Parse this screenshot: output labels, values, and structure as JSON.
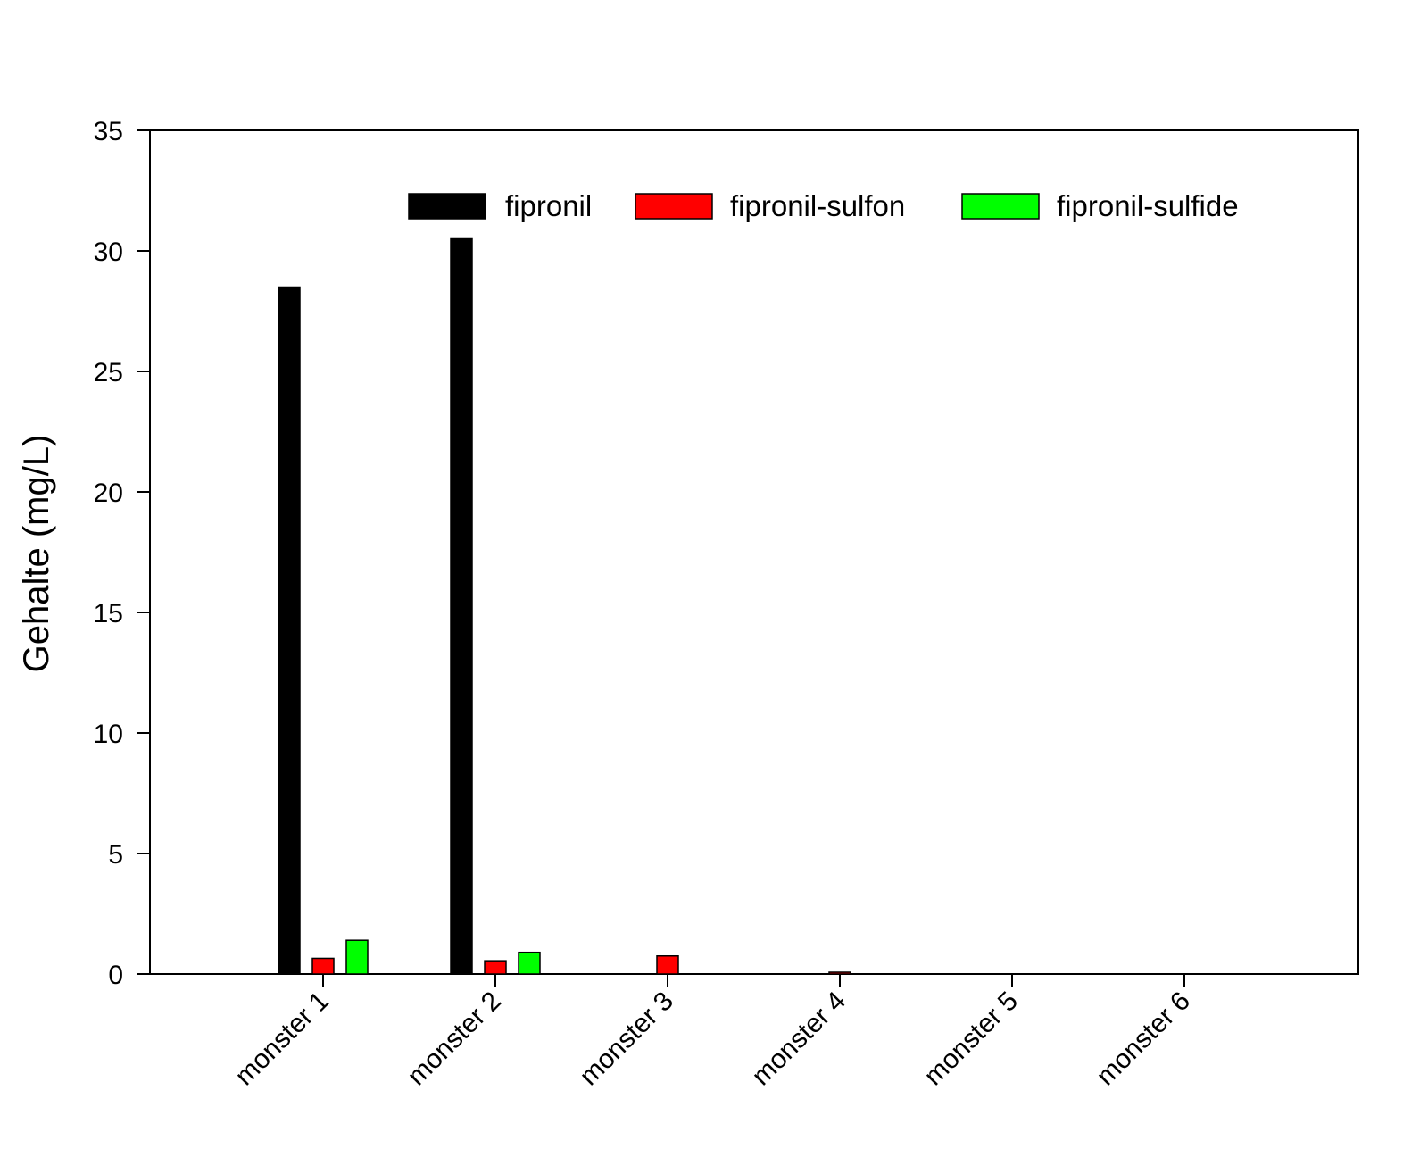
{
  "chart_data": {
    "type": "bar",
    "title": "",
    "xlabel": "",
    "ylabel": "Gehalte (mg/L)",
    "ylim": [
      0,
      35
    ],
    "yticks": [
      0,
      5,
      10,
      15,
      20,
      25,
      30,
      35
    ],
    "grid": false,
    "legend_position": "top-right",
    "categories": [
      "monster 1",
      "monster 2",
      "monster 3",
      "monster 4",
      "monster 5",
      "monster 6"
    ],
    "series": [
      {
        "name": "fipronil",
        "color": "#000000",
        "values": [
          28.5,
          30.5,
          0,
          0,
          0,
          0
        ]
      },
      {
        "name": "fipronil-sulfon",
        "color": "#ff0000",
        "values": [
          0.65,
          0.55,
          0.75,
          0.05,
          0,
          0
        ]
      },
      {
        "name": "fipronil-sulfide",
        "color": "#00ff00",
        "values": [
          1.4,
          0.9,
          0,
          0,
          0,
          0
        ]
      }
    ]
  }
}
